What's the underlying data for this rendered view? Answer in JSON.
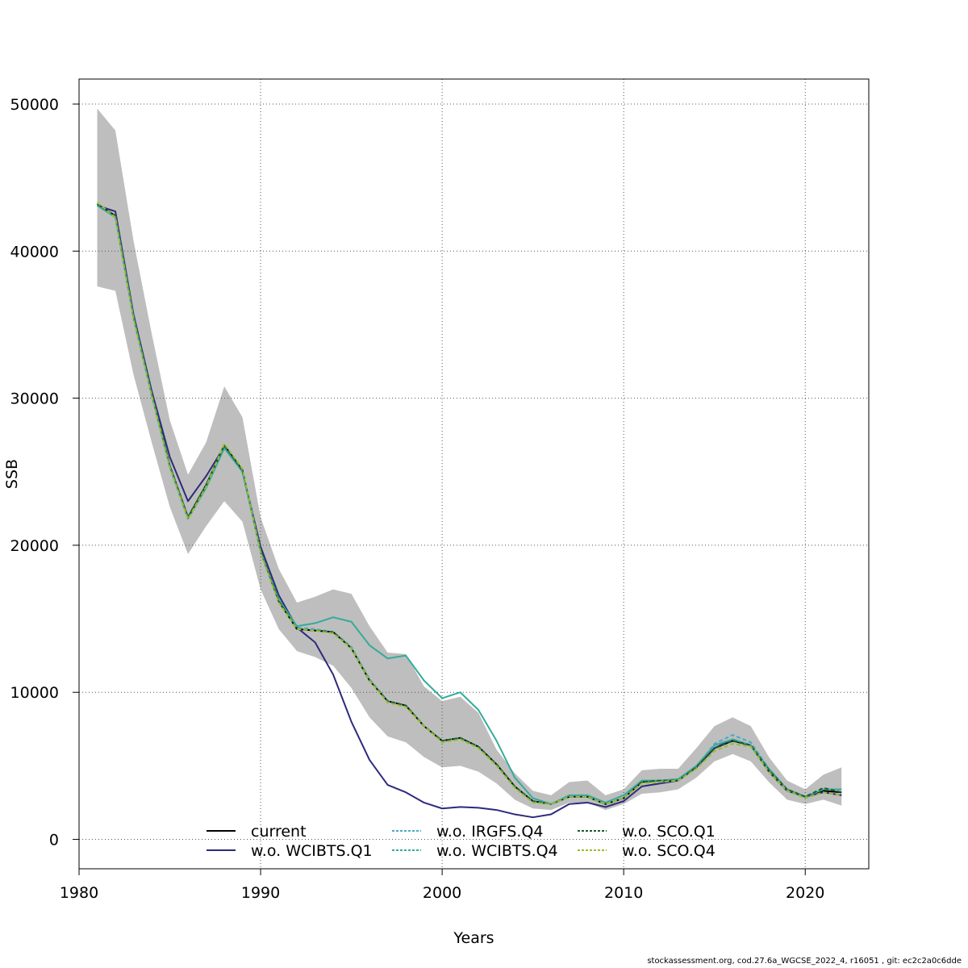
{
  "chart_data": {
    "type": "line",
    "title": "",
    "xlabel": "Years",
    "ylabel": "SSB",
    "xlim": [
      1980,
      2023.5
    ],
    "ylim": [
      -2000,
      51700
    ],
    "grid": true,
    "legend_position": "bottom-center",
    "x_ticks": [
      1980,
      1990,
      2000,
      2010,
      2020
    ],
    "x_tick_labels": [
      "1980",
      "1990",
      "2000",
      "2010",
      "2020"
    ],
    "y_ticks": [
      0,
      10000,
      20000,
      30000,
      40000,
      50000
    ],
    "y_tick_labels": [
      "0",
      "10000",
      "20000",
      "30000",
      "40000",
      "50000"
    ],
    "x": [
      1981,
      1982,
      1983,
      1984,
      1985,
      1986,
      1987,
      1988,
      1989,
      1990,
      1991,
      1992,
      1993,
      1994,
      1995,
      1996,
      1997,
      1998,
      1999,
      2000,
      2001,
      2002,
      2003,
      2004,
      2005,
      2006,
      2007,
      2008,
      2009,
      2010,
      2011,
      2012,
      2013,
      2014,
      2015,
      2016,
      2017,
      2018,
      2019,
      2020,
      2021,
      2022
    ],
    "band": {
      "color": "#bebebe",
      "lower": [
        37600,
        37300,
        31600,
        27000,
        22600,
        19400,
        21300,
        23000,
        21600,
        17000,
        14300,
        12800,
        12400,
        11800,
        10300,
        8300,
        7000,
        6600,
        5600,
        4900,
        5000,
        4600,
        3800,
        2700,
        2100,
        2000,
        2500,
        2500,
        2000,
        2400,
        3100,
        3200,
        3400,
        4200,
        5300,
        5800,
        5300,
        3900,
        2700,
        2400,
        2700,
        2300
      ],
      "upper": [
        49700,
        48200,
        40700,
        34400,
        28500,
        24800,
        27000,
        30800,
        28700,
        21900,
        18400,
        16100,
        16500,
        17000,
        16700,
        14500,
        12700,
        12600,
        10400,
        9400,
        9700,
        8600,
        6100,
        4500,
        3300,
        3000,
        3900,
        4000,
        3000,
        3400,
        4700,
        4800,
        4800,
        6200,
        7700,
        8300,
        7700,
        5600,
        4000,
        3400,
        4400,
        4900
      ]
    },
    "series": [
      {
        "name": "current",
        "color": "#000000",
        "dash": "",
        "values": [
          43200,
          42400,
          35500,
          30300,
          25400,
          21900,
          24100,
          26800,
          25100,
          19600,
          16200,
          14300,
          14200,
          14100,
          13000,
          10800,
          9400,
          9100,
          7700,
          6700,
          6900,
          6300,
          5100,
          3600,
          2600,
          2400,
          2900,
          2900,
          2400,
          2800,
          3900,
          4000,
          4000,
          4900,
          6200,
          6700,
          6400,
          4700,
          3400,
          2900,
          3300,
          3200
        ]
      },
      {
        "name": "w.o. WCIBTS.Q1",
        "color": "#2e2a7d",
        "dash": "",
        "values": [
          43100,
          42700,
          35700,
          30500,
          26000,
          23000,
          24700,
          26700,
          25000,
          19900,
          16600,
          14400,
          13400,
          11200,
          8000,
          5400,
          3700,
          3200,
          2500,
          2100,
          2200,
          2150,
          2000,
          1700,
          1500,
          1700,
          2400,
          2500,
          2200,
          2600,
          3600,
          3800,
          4000,
          4900,
          6200,
          6800,
          6400,
          4600,
          3300,
          2900,
          3200,
          3000
        ]
      },
      {
        "name": "w.o. IRGFS.Q4",
        "color": "#4aa8c9",
        "dash": "5,3",
        "values": [
          43200,
          42400,
          35500,
          30300,
          25400,
          21900,
          24100,
          26800,
          25100,
          19600,
          16200,
          14400,
          14300,
          14100,
          13100,
          10900,
          9400,
          9100,
          7700,
          6700,
          6900,
          6300,
          5100,
          3600,
          2600,
          2400,
          2900,
          2900,
          2400,
          2800,
          3900,
          4000,
          4000,
          4900,
          6500,
          7100,
          6600,
          4800,
          3400,
          2900,
          3400,
          3400
        ]
      },
      {
        "name": "w.o. WCIBTS.Q4",
        "color": "#35ab9b",
        "dash": "",
        "values": [
          43100,
          42300,
          35500,
          30200,
          25300,
          21800,
          23900,
          26600,
          25000,
          19600,
          16300,
          14500,
          14700,
          15100,
          14800,
          13200,
          12300,
          12500,
          10800,
          9600,
          10000,
          8800,
          6700,
          4200,
          2800,
          2400,
          3000,
          3000,
          2500,
          3000,
          4000,
          4000,
          4100,
          5000,
          6400,
          6800,
          6400,
          4800,
          3400,
          2900,
          3400,
          3400
        ]
      },
      {
        "name": "w.o. SCO.Q1",
        "color": "#1d5a2a",
        "dash": "5,3",
        "values": [
          43200,
          42400,
          35500,
          30300,
          25400,
          21900,
          24100,
          26800,
          25100,
          19600,
          16200,
          14300,
          14200,
          14100,
          13000,
          10800,
          9400,
          9100,
          7700,
          6700,
          6900,
          6300,
          5100,
          3600,
          2600,
          2400,
          2900,
          2900,
          2400,
          2800,
          3900,
          4000,
          4000,
          4900,
          6200,
          6700,
          6400,
          4700,
          3400,
          2900,
          3500,
          3200
        ]
      },
      {
        "name": "w.o. SCO.Q4",
        "color": "#9bbd2e",
        "dash": "5,3",
        "values": [
          43300,
          42300,
          35400,
          30200,
          25300,
          21800,
          24000,
          26900,
          25200,
          19500,
          16100,
          14300,
          14200,
          14000,
          13000,
          10800,
          9300,
          9000,
          7700,
          6600,
          6800,
          6200,
          5000,
          3500,
          2500,
          2400,
          2900,
          2900,
          2400,
          2800,
          3800,
          3900,
          4000,
          4800,
          6000,
          6500,
          6300,
          4600,
          3300,
          2800,
          3200,
          3000
        ]
      }
    ]
  },
  "legend": {
    "entries": [
      {
        "label": "current",
        "color": "#000000",
        "dash": ""
      },
      {
        "label": "w.o. WCIBTS.Q1",
        "color": "#2e2a7d",
        "dash": ""
      },
      {
        "label": "w.o. IRGFS.Q4",
        "color": "#4aa8c9",
        "dash": "3,2"
      },
      {
        "label": "w.o. WCIBTS.Q4",
        "color": "#35ab9b",
        "dash": "3,2"
      },
      {
        "label": "w.o. SCO.Q1",
        "color": "#1d5a2a",
        "dash": "3,2"
      },
      {
        "label": "w.o. SCO.Q4",
        "color": "#9bbd2e",
        "dash": "3,2"
      }
    ]
  },
  "footer": {
    "text": "stockassessment.org, cod.27.6a_WGCSE_2022_4, r16051 , git: ec2c2a0c6dde"
  }
}
